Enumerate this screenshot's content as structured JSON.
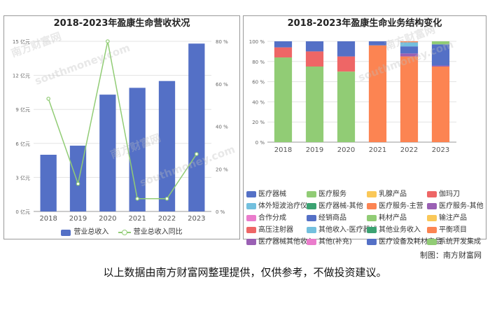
{
  "chart_data": [
    {
      "type": "bar",
      "title": "2018-2023年盈康生命营收状况",
      "categories": [
        "2018",
        "2019",
        "2020",
        "2021",
        "2022",
        "2023"
      ],
      "series": [
        {
          "name": "营业总收入",
          "type": "bar",
          "axis": "left",
          "values": [
            5.0,
            5.8,
            10.3,
            10.9,
            11.5,
            14.8
          ]
        },
        {
          "name": "营业总收入同比",
          "type": "line",
          "axis": "right",
          "values": [
            53,
            13,
            80,
            6,
            6,
            27
          ]
        }
      ],
      "y_left": {
        "ticks": [
          "0 亿元",
          "3 亿元",
          "6 亿元",
          "9 亿元",
          "12 亿元",
          "15 亿元"
        ],
        "range": [
          0,
          15
        ]
      },
      "y_right": {
        "ticks": [
          "0 %",
          "20 %",
          "40 %",
          "60 %",
          "80 %"
        ],
        "range": [
          0,
          80
        ]
      },
      "colors": {
        "bar": "#5470c6",
        "line": "#91cc75"
      },
      "legend": "bottom-center",
      "grid": true
    },
    {
      "type": "bar",
      "stacked": true,
      "title": "2018-2023年盈康生命业务结构变化",
      "categories": [
        "2018",
        "2019",
        "2020",
        "2021",
        "2022",
        "2023"
      ],
      "y_axis": {
        "ticks": [
          "0 %",
          "20 %",
          "40 %",
          "60 %",
          "80 %",
          "100 %"
        ],
        "range": [
          0,
          100
        ]
      },
      "series": [
        {
          "name": "医疗器械",
          "color": "#5470c6",
          "values": [
            0,
            0,
            0,
            0,
            0,
            0
          ]
        },
        {
          "name": "医疗服务",
          "color": "#91cc75",
          "values": [
            84,
            75,
            70,
            0,
            0,
            0
          ]
        },
        {
          "name": "乳腺产品",
          "color": "#fac858",
          "values": [
            0,
            0,
            0,
            0,
            0,
            0
          ]
        },
        {
          "name": "伽玛刀",
          "color": "#ee6666",
          "values": [
            10,
            15,
            15,
            0,
            0,
            0
          ]
        },
        {
          "name": "体外短波治疗仪",
          "color": "#73c0de",
          "values": [
            0,
            0,
            0,
            0,
            0,
            0
          ]
        },
        {
          "name": "医疗器械-其他",
          "color": "#3ba272",
          "values": [
            0,
            0,
            0,
            0,
            0,
            0
          ]
        },
        {
          "name": "医疗服务-主营",
          "color": "#fc8452",
          "values": [
            0,
            0,
            0,
            96,
            85,
            75
          ]
        },
        {
          "name": "医疗服务-其他",
          "color": "#9a60b4",
          "values": [
            0,
            0,
            0,
            0,
            3,
            0
          ]
        },
        {
          "name": "合作分成",
          "color": "#ea7ccc",
          "values": [
            0,
            0,
            0,
            0,
            0,
            0
          ]
        },
        {
          "name": "经销商品",
          "color": "#5470c6",
          "values": [
            6,
            10,
            15,
            4,
            7,
            0
          ]
        },
        {
          "name": "耗材产品",
          "color": "#91cc75",
          "values": [
            0,
            0,
            0,
            0,
            0,
            0
          ]
        },
        {
          "name": "输注产品",
          "color": "#fac858",
          "values": [
            0,
            0,
            0,
            0,
            0,
            0
          ]
        },
        {
          "name": "高压注射器",
          "color": "#ee6666",
          "values": [
            0,
            0,
            0,
            0,
            0,
            0
          ]
        },
        {
          "name": "其他收入-医疗器械",
          "color": "#73c0de",
          "values": [
            0,
            0,
            0,
            0,
            4,
            0
          ]
        },
        {
          "name": "其他业务收入",
          "color": "#3ba272",
          "values": [
            0,
            0,
            0,
            0,
            0,
            0
          ]
        },
        {
          "name": "平衡项目",
          "color": "#fc8452",
          "values": [
            0,
            0,
            0,
            0,
            1,
            0
          ]
        },
        {
          "name": "医疗器械其他收入",
          "color": "#9a60b4",
          "values": [
            0,
            0,
            0,
            0,
            0,
            1
          ]
        },
        {
          "name": "其他(补充)",
          "color": "#ea7ccc",
          "values": [
            0,
            0,
            0,
            0,
            0,
            0
          ]
        },
        {
          "name": "医疗设备及耗材产品",
          "color": "#5470c6",
          "values": [
            0,
            0,
            0,
            0,
            0,
            21
          ]
        },
        {
          "name": "系统开发集成",
          "color": "#91cc75",
          "values": [
            0,
            0,
            0,
            0,
            0,
            3
          ]
        }
      ],
      "legend": "bottom",
      "grid": true
    }
  ],
  "footer": {
    "credit": "制图：南方财富网",
    "note": "以上数据由南方财富网整理提供，仅供参考，不做投资建议。"
  },
  "watermark": {
    "cn": "南方财富网",
    "en": "southmoney.com"
  }
}
